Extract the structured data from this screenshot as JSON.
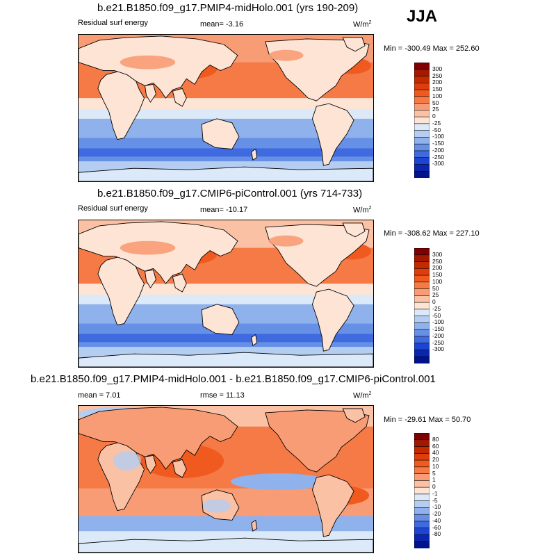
{
  "season": "JJA",
  "panels": [
    {
      "title": "b.e21.B1850.f09_g17.PMIP4-midHolo.001 (yrs 190-209)",
      "left_label": "Residual surf energy",
      "center_label": "mean=  -3.16",
      "units": "W/m",
      "units_sup": "2",
      "minmax": "Min = -300.49 Max = 252.60",
      "colorbar_labels": [
        "300",
        "250",
        "200",
        "150",
        "100",
        "50",
        "25",
        "0",
        "-25",
        "-50",
        "-100",
        "-150",
        "-200",
        "-250",
        "-300"
      ]
    },
    {
      "title": "b.e21.B1850.f09_g17.CMIP6-piControl.001 (yrs 714-733)",
      "left_label": "Residual surf energy",
      "center_label": "mean= -10.17",
      "units": "W/m",
      "units_sup": "2",
      "minmax": "Min = -308.62 Max = 227.10",
      "colorbar_labels": [
        "300",
        "250",
        "200",
        "150",
        "100",
        "50",
        "25",
        "0",
        "-25",
        "-50",
        "-100",
        "-150",
        "-200",
        "-250",
        "-300"
      ]
    },
    {
      "title": "b.e21.B1850.f09_g17.PMIP4-midHolo.001 - b.e21.B1850.f09_g17.CMIP6-piControl.001",
      "left_label": "mean =   7.01",
      "center_label": "rmse =  11.13",
      "units": "W/m",
      "units_sup": "2",
      "minmax": "Min = -29.61 Max =  50.70",
      "colorbar_labels": [
        "80",
        "60",
        "40",
        "20",
        "10",
        "5",
        "1",
        "0",
        "-1",
        "-5",
        "-10",
        "-20",
        "-40",
        "-60",
        "-80"
      ]
    }
  ],
  "colors": {
    "levels": [
      "#7f0000",
      "#a31800",
      "#c42a00",
      "#de3e0c",
      "#f05a1e",
      "#f57a46",
      "#f89c75",
      "#fbc1a4",
      "#fde4d4",
      "#dbe9f8",
      "#b4cdf1",
      "#8fb1ec",
      "#6690e6",
      "#3f6ae0",
      "#1c45d3",
      "#0a26b0",
      "#00138a"
    ]
  }
}
